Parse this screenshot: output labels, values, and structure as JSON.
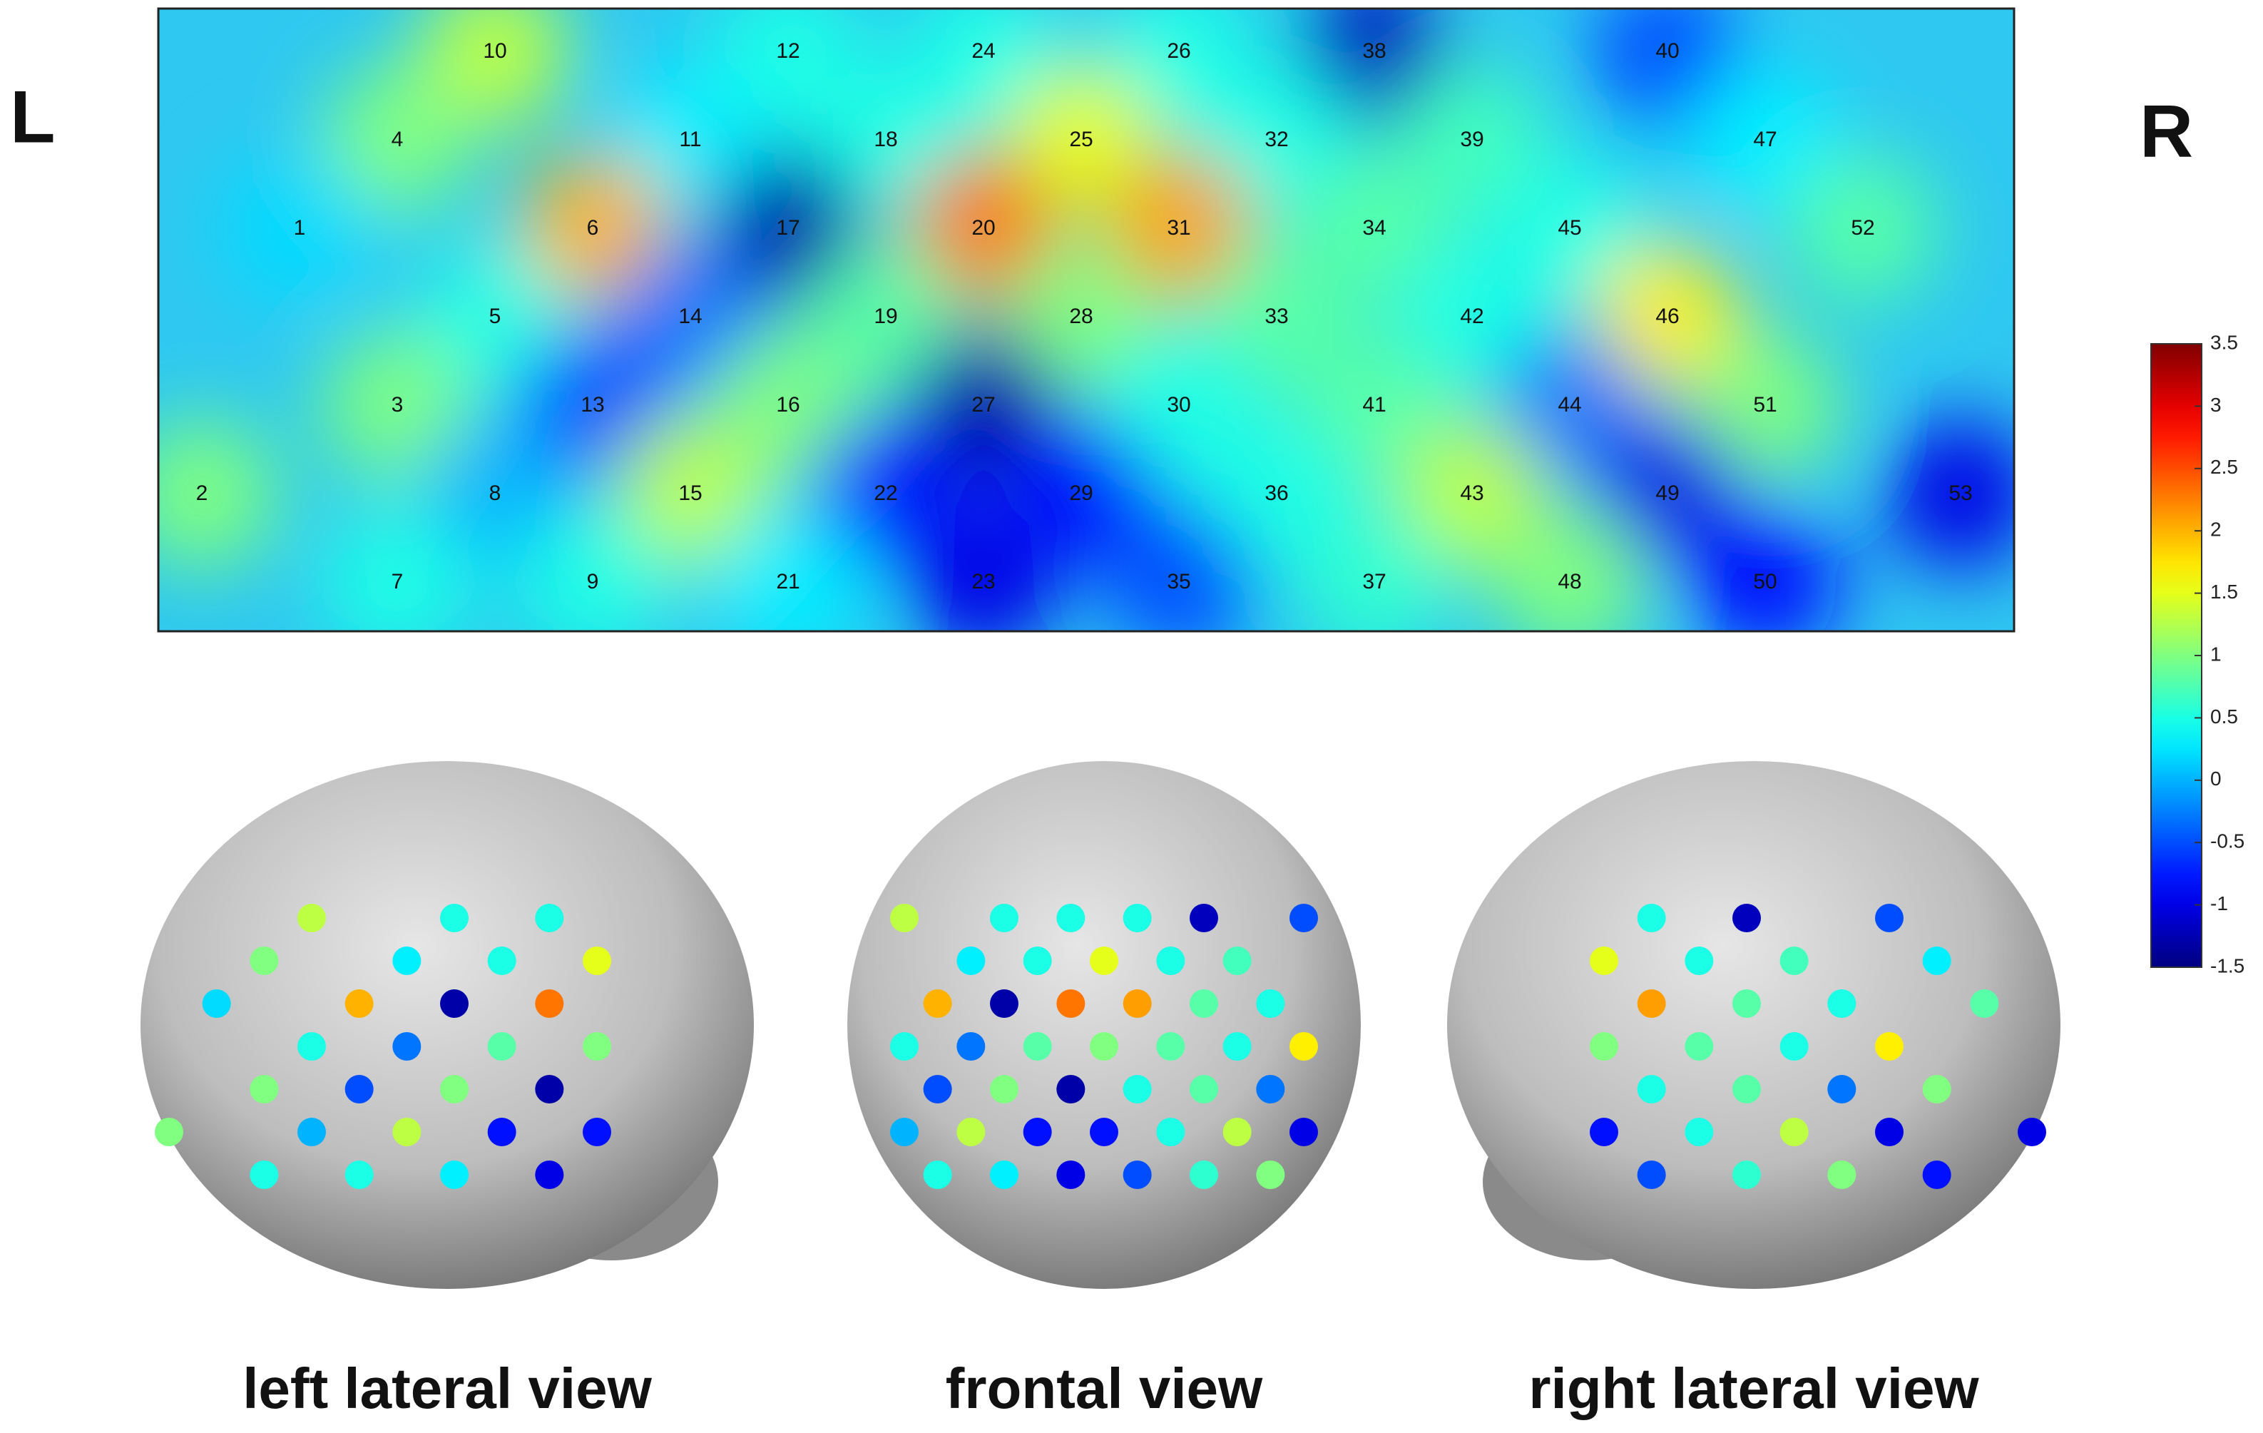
{
  "labels": {
    "left": "L",
    "right": "R"
  },
  "channel_map": {
    "rows": [
      [
        null,
        null,
        null,
        10,
        null,
        null,
        12,
        null,
        24,
        null,
        26,
        null,
        38,
        null,
        null,
        40,
        null,
        null,
        null
      ],
      [
        null,
        null,
        4,
        null,
        null,
        11,
        null,
        18,
        null,
        25,
        null,
        32,
        null,
        39,
        null,
        null,
        47,
        null,
        null
      ],
      [
        null,
        1,
        null,
        null,
        6,
        null,
        17,
        null,
        20,
        null,
        31,
        null,
        34,
        null,
        45,
        null,
        null,
        52,
        null
      ],
      [
        null,
        null,
        null,
        5,
        null,
        14,
        null,
        19,
        null,
        28,
        null,
        33,
        null,
        42,
        null,
        46,
        null,
        null,
        null
      ],
      [
        null,
        null,
        3,
        null,
        13,
        null,
        16,
        null,
        27,
        null,
        30,
        null,
        41,
        null,
        44,
        null,
        51,
        null,
        null
      ],
      [
        2,
        null,
        null,
        8,
        null,
        15,
        null,
        22,
        null,
        29,
        null,
        36,
        null,
        43,
        null,
        49,
        null,
        null,
        53
      ],
      [
        null,
        null,
        7,
        null,
        9,
        null,
        21,
        null,
        23,
        null,
        35,
        null,
        37,
        null,
        48,
        null,
        50,
        null,
        null
      ]
    ],
    "values": [
      [
        null,
        null,
        null,
        1.3,
        null,
        null,
        0.5,
        null,
        0.5,
        null,
        0.5,
        null,
        -1.2,
        null,
        null,
        -0.5,
        null,
        null,
        null
      ],
      [
        null,
        null,
        1.0,
        null,
        null,
        0.3,
        null,
        0.5,
        null,
        1.5,
        null,
        0.5,
        null,
        0.7,
        null,
        null,
        0.3,
        null,
        null
      ],
      [
        null,
        0.2,
        null,
        null,
        2.0,
        null,
        -1.3,
        null,
        2.3,
        null,
        2.1,
        null,
        0.8,
        null,
        0.5,
        null,
        null,
        0.8,
        null
      ],
      [
        null,
        null,
        null,
        0.5,
        null,
        -0.3,
        null,
        0.8,
        null,
        1.0,
        null,
        0.8,
        null,
        0.5,
        null,
        1.7,
        null,
        null,
        null
      ],
      [
        null,
        null,
        1.0,
        null,
        -0.5,
        null,
        1.0,
        null,
        -1.3,
        null,
        0.5,
        null,
        0.8,
        null,
        -0.3,
        null,
        1.0,
        null,
        null
      ],
      [
        1.0,
        null,
        null,
        0.0,
        null,
        1.3,
        null,
        -0.8,
        null,
        -0.8,
        null,
        0.5,
        null,
        1.3,
        null,
        -1.0,
        null,
        null,
        -1.0
      ],
      [
        null,
        null,
        0.5,
        null,
        0.5,
        null,
        0.3,
        null,
        -1.0,
        null,
        -0.5,
        null,
        0.6,
        null,
        1.0,
        null,
        -0.8,
        null,
        null
      ]
    ]
  },
  "colorbar": {
    "lim": [
      -1.5,
      3.5
    ],
    "ticks": [
      -1.5,
      -1,
      -0.5,
      0,
      0.5,
      1,
      1.5,
      2,
      2.5,
      3,
      3.5
    ]
  },
  "views": [
    "left lateral view",
    "frontal view",
    "right lateral view"
  ]
}
